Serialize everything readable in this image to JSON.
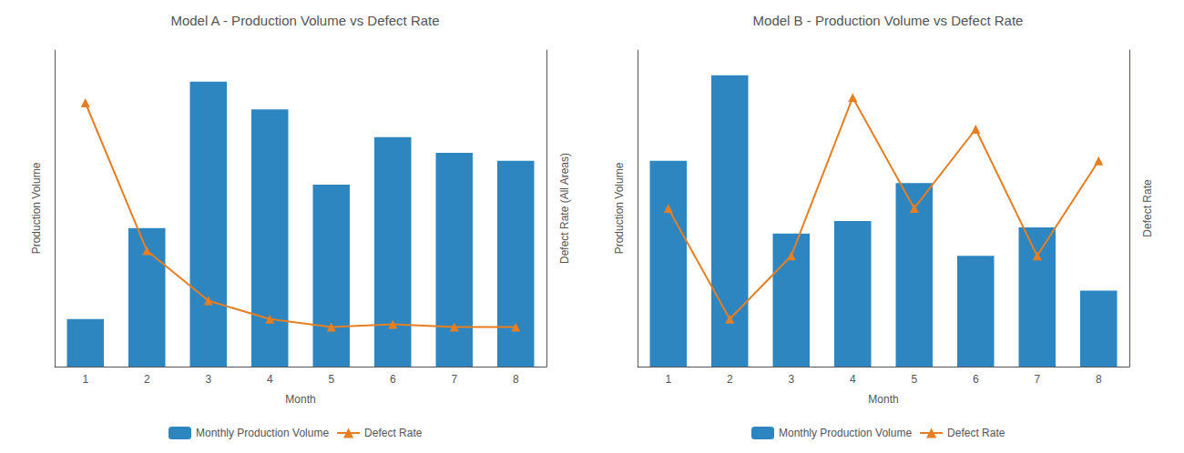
{
  "chart_data": [
    {
      "type": "bar",
      "title": "Model A - Production Volume vs Defect Rate",
      "xlabel": "Month",
      "ylabel": "Production Volume",
      "y2label": "Defect Rate (All Areas)",
      "categories": [
        "1",
        "2",
        "3",
        "4",
        "5",
        "6",
        "7",
        "8"
      ],
      "series": [
        {
          "name": "Monthly Production Volume",
          "type": "bar",
          "color": "#2E86C1",
          "values": [
            12,
            35,
            72,
            65,
            46,
            58,
            54,
            52
          ]
        },
        {
          "name": "Defect Rate",
          "type": "line",
          "color": "#E67E22",
          "marker": "triangle",
          "axis": "y2",
          "values": [
            100,
            44,
            25,
            18,
            15,
            16,
            15,
            15
          ]
        }
      ],
      "ylim": [
        0,
        80
      ],
      "yticks": [
        0,
        20,
        40,
        60,
        80
      ],
      "y2lim": [
        0,
        120
      ],
      "y2ticks": [
        0,
        20,
        40,
        60,
        80,
        100,
        120
      ],
      "tick_labels": "x",
      "grid": false,
      "legend": "bottom"
    },
    {
      "type": "bar",
      "title": "Model B - Production Volume vs Defect Rate",
      "xlabel": "Month",
      "ylabel": "Production Volume",
      "y2label": "Defect Rate",
      "categories": [
        "1",
        "2",
        "3",
        "4",
        "5",
        "6",
        "7",
        "8"
      ],
      "series": [
        {
          "name": "Monthly Production Volume",
          "type": "bar",
          "color": "#2E86C1",
          "values": [
            65,
            92,
            42,
            46,
            58,
            35,
            44,
            24
          ]
        },
        {
          "name": "Defect Rate",
          "type": "line",
          "color": "#E67E22",
          "marker": "triangle",
          "axis": "y2",
          "values": [
            55,
            48,
            52,
            62,
            55,
            60,
            52,
            58
          ]
        }
      ],
      "ylim": [
        0,
        100
      ],
      "yticks": [
        0,
        20,
        40,
        60,
        80,
        100
      ],
      "y2lim": [
        45,
        65
      ],
      "y2ticks": [
        45,
        50,
        55,
        60,
        65
      ],
      "tick_labels": "x",
      "grid": false,
      "legend": "bottom"
    }
  ]
}
